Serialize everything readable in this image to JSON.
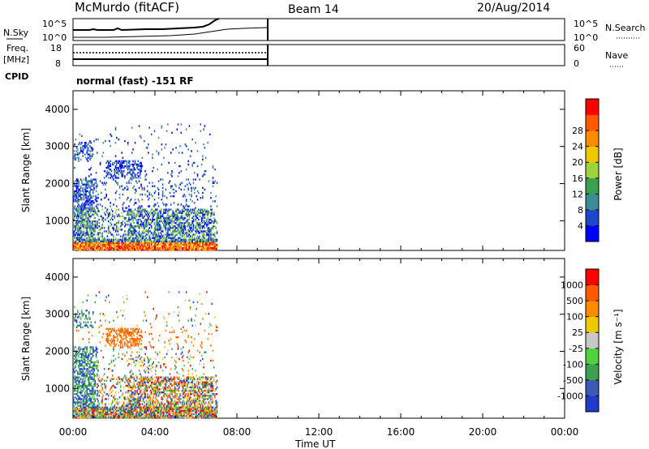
{
  "header": {
    "station": "McMurdo (fitACF)",
    "beam": "Beam 14",
    "date": "20/Aug/2014"
  },
  "panels": {
    "noise": {
      "left_label": "N.Sky",
      "right_label": "N.Search",
      "left_ticks": [
        "10^5",
        "10^0"
      ],
      "right_ticks": [
        "10^5",
        "10^0"
      ]
    },
    "freq": {
      "left_label_1": "Freq.",
      "left_label_2": "[MHz]",
      "right_label": "Nave",
      "left_ticks": [
        "18",
        "8"
      ],
      "right_ticks": [
        "60",
        "0"
      ]
    },
    "cpid": {
      "label": "CPID",
      "text": "normal (fast) -151 RF"
    }
  },
  "colors": {
    "power": [
      "#0000ff",
      "#1e46c8",
      "#3c8c96",
      "#3ca050",
      "#a0d23c",
      "#f0c800",
      "#ff8c00",
      "#ff5a00",
      "#ff0000"
    ],
    "velocity": [
      "#ff0000",
      "#ff5a00",
      "#ff8c00",
      "#f0c800",
      "#c8c8c8",
      "#50d23c",
      "#3ca050",
      "#3c5ab4",
      "#1e3cc8"
    ]
  },
  "chart_data": [
    {
      "type": "heatmap",
      "name": "power-panel",
      "ylabel": "Slant Range [km]",
      "y_ticks": [
        1000,
        2000,
        3000,
        4000
      ],
      "ylim": [
        200,
        4500
      ],
      "xlim": [
        0,
        24
      ],
      "colorbar_label": "Power [dB]",
      "colorbar_ticks": [
        "4",
        "8",
        "12",
        "16",
        "20",
        "24",
        "28"
      ],
      "data_extent_hours": [
        0,
        7
      ]
    },
    {
      "type": "heatmap",
      "name": "velocity-panel",
      "ylabel": "Slant Range [km]",
      "y_ticks": [
        1000,
        2000,
        3000,
        4000
      ],
      "ylim": [
        200,
        4500
      ],
      "xlim": [
        0,
        24
      ],
      "xlabel": "Time UT",
      "x_ticks": [
        "00:00",
        "04:00",
        "08:00",
        "12:00",
        "16:00",
        "20:00",
        "00:00"
      ],
      "colorbar_label": "Velocity [m s⁻¹]",
      "colorbar_ticks": [
        "1000",
        "500",
        "100",
        "25",
        "-25",
        "-100",
        "-500",
        "-1000"
      ],
      "data_extent_hours": [
        0,
        7
      ]
    }
  ]
}
